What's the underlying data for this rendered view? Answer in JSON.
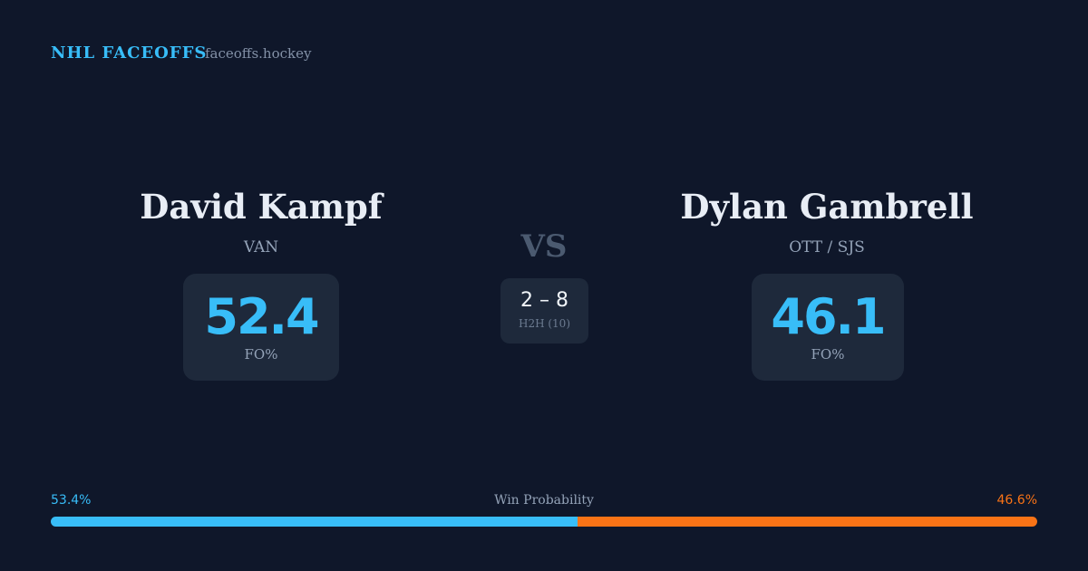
{
  "header": {
    "title": "NHL FACEOFFS",
    "domain": "faceoffs.hockey"
  },
  "players": [
    {
      "name": "David Kampf",
      "team": "VAN",
      "fo_pct": 52.4,
      "fo_label": "FO%"
    },
    {
      "name": "Dylan Gambrell",
      "team": "OTT / SJS",
      "fo_pct": 46.1,
      "fo_label": "FO%"
    }
  ],
  "versus": "VS",
  "h2h": {
    "score": "2 – 8",
    "label": "H2H (10)"
  },
  "win_probability": {
    "label": "Win Probability",
    "values": [
      53.4,
      46.6
    ],
    "value_labels": [
      "53.4%",
      "46.6%"
    ],
    "colors": [
      "#38bdf8",
      "#f97316"
    ]
  }
}
